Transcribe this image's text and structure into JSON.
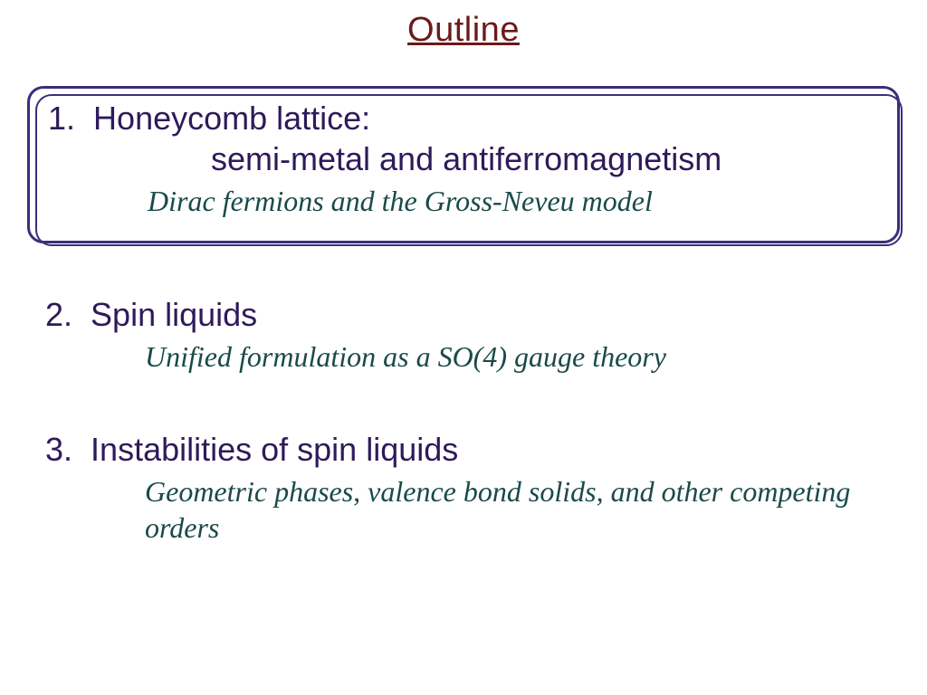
{
  "title": "Outline",
  "items": [
    {
      "number": "1.",
      "heading_line1": "Honeycomb lattice:",
      "heading_line2": "semi-metal and antiferromagnetism",
      "subtitle": "Dirac fermions and the Gross-Neveu model",
      "boxed": true
    },
    {
      "number": "2.",
      "heading_line1": "Spin liquids",
      "heading_line2": "",
      "subtitle": "Unified formulation as a SO(4) gauge theory",
      "boxed": false
    },
    {
      "number": "3.",
      "heading_line1": "Instabilities of spin liquids",
      "heading_line2": "",
      "subtitle": "Geometric phases, valence bond solids, and other competing orders",
      "boxed": false
    }
  ],
  "colors": {
    "title_color": "#6b1a1a",
    "heading_color": "#2e1a5a",
    "subtitle_color": "#1a4a4a",
    "box_border": "#3b2e7a",
    "background": "#ffffff"
  },
  "typography": {
    "title_fontsize": 38,
    "heading_fontsize": 36,
    "subtitle_fontsize": 32,
    "title_font": "Arial",
    "heading_font": "Arial",
    "subtitle_font": "Georgia italic"
  }
}
